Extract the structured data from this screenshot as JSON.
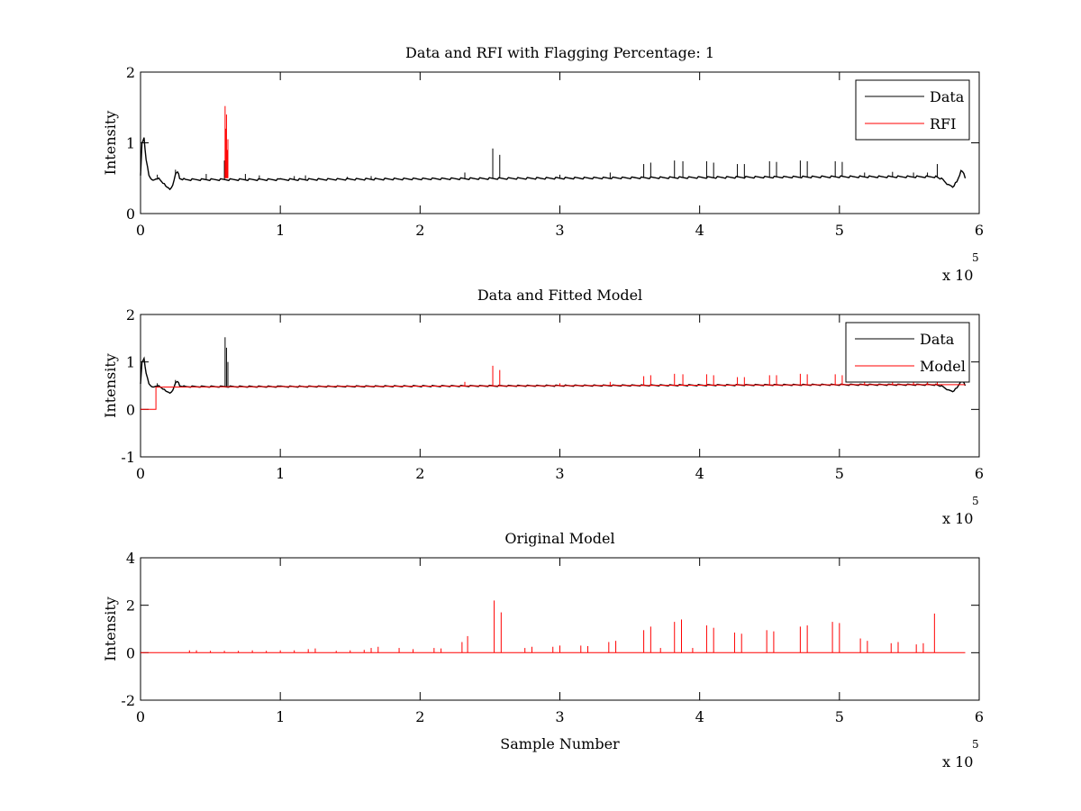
{
  "colors": {
    "data": "#000000",
    "rfi": "#ff0000",
    "model": "#ff0000",
    "axes": "#000000",
    "background": "#ffffff"
  },
  "x_multiplier": "x 10",
  "x_multiplier_exponent": "5",
  "chart_data": [
    {
      "type": "line",
      "title": "Data and RFI with Flagging Percentage: 1",
      "xlabel": "",
      "ylabel": "Intensity",
      "xlim": [
        0,
        600000
      ],
      "ylim": [
        0,
        2
      ],
      "xticks": [
        0,
        100000,
        200000,
        300000,
        400000,
        500000,
        600000
      ],
      "xtick_labels": [
        "0",
        "1",
        "2",
        "3",
        "4",
        "5",
        "6"
      ],
      "yticks": [
        0,
        1,
        2
      ],
      "ytick_labels": [
        "0",
        "1",
        "2"
      ],
      "grid": false,
      "legend": {
        "placement": "top-right",
        "entries": [
          "Data",
          "RFI"
        ]
      },
      "series": [
        {
          "name": "Data",
          "color": "#000000",
          "baseline": [
            [
              0,
              0.55
            ],
            [
              1000,
              1.0
            ],
            [
              2500,
              1.07
            ],
            [
              4000,
              0.75
            ],
            [
              6000,
              0.55
            ],
            [
              8000,
              0.48
            ],
            [
              10000,
              0.47
            ],
            [
              12000,
              0.5
            ],
            [
              14000,
              0.48
            ],
            [
              17000,
              0.42
            ],
            [
              19000,
              0.36
            ],
            [
              21000,
              0.35
            ],
            [
              23000,
              0.4
            ],
            [
              25000,
              0.55
            ],
            [
              26500,
              0.6
            ],
            [
              28000,
              0.5
            ],
            [
              32000,
              0.48
            ],
            [
              100000,
              0.48
            ],
            [
              200000,
              0.49
            ],
            [
              300000,
              0.5
            ],
            [
              400000,
              0.51
            ],
            [
              500000,
              0.52
            ],
            [
              570000,
              0.52
            ],
            [
              574000,
              0.48
            ],
            [
              578000,
              0.4
            ],
            [
              581000,
              0.38
            ],
            [
              584000,
              0.45
            ],
            [
              587000,
              0.6
            ],
            [
              589000,
              0.58
            ],
            [
              590000,
              0.5
            ]
          ],
          "spikes": [
            [
              12000,
              0.55
            ],
            [
              25000,
              0.62
            ],
            [
              47000,
              0.56
            ],
            [
              60000,
              0.75
            ],
            [
              75000,
              0.56
            ],
            [
              85000,
              0.54
            ],
            [
              110000,
              0.53
            ],
            [
              118000,
              0.54
            ],
            [
              148000,
              0.52
            ],
            [
              165000,
              0.53
            ],
            [
              232000,
              0.58
            ],
            [
              252000,
              0.92
            ],
            [
              257000,
              0.83
            ],
            [
              300000,
              0.55
            ],
            [
              336000,
              0.58
            ],
            [
              360000,
              0.7
            ],
            [
              365000,
              0.72
            ],
            [
              382000,
              0.75
            ],
            [
              388000,
              0.74
            ],
            [
              405000,
              0.74
            ],
            [
              410000,
              0.72
            ],
            [
              427000,
              0.7
            ],
            [
              432000,
              0.7
            ],
            [
              450000,
              0.74
            ],
            [
              455000,
              0.73
            ],
            [
              472000,
              0.75
            ],
            [
              477000,
              0.74
            ],
            [
              497000,
              0.74
            ],
            [
              502000,
              0.73
            ],
            [
              518000,
              0.58
            ],
            [
              538000,
              0.59
            ],
            [
              553000,
              0.58
            ],
            [
              563000,
              0.58
            ],
            [
              570000,
              0.7
            ]
          ]
        },
        {
          "name": "RFI",
          "color": "#ff0000",
          "baseline_value": 0.5,
          "spikes": [
            [
              60500,
              1.52
            ],
            [
              61000,
              1.2
            ],
            [
              61500,
              1.4
            ],
            [
              62000,
              0.9
            ],
            [
              62500,
              1.05
            ]
          ]
        }
      ]
    },
    {
      "type": "line",
      "title": "Data and Fitted Model",
      "xlabel": "",
      "ylabel": "Intensity",
      "xlim": [
        0,
        600000
      ],
      "ylim": [
        -1,
        2
      ],
      "xticks": [
        0,
        100000,
        200000,
        300000,
        400000,
        500000,
        600000
      ],
      "xtick_labels": [
        "0",
        "1",
        "2",
        "3",
        "4",
        "5",
        "6"
      ],
      "yticks": [
        -1,
        0,
        1,
        2
      ],
      "ytick_labels": [
        "-1",
        "0",
        "1",
        "2"
      ],
      "grid": false,
      "legend": {
        "placement": "top-right",
        "entries": [
          "Data",
          "Model"
        ]
      },
      "series": [
        {
          "name": "Data",
          "color": "#000000",
          "baseline": [
            [
              0,
              0.55
            ],
            [
              1000,
              1.0
            ],
            [
              2500,
              1.07
            ],
            [
              4000,
              0.75
            ],
            [
              6000,
              0.55
            ],
            [
              8000,
              0.48
            ],
            [
              10000,
              0.47
            ],
            [
              12000,
              0.5
            ],
            [
              14000,
              0.48
            ],
            [
              17000,
              0.42
            ],
            [
              19000,
              0.36
            ],
            [
              21000,
              0.35
            ],
            [
              23000,
              0.4
            ],
            [
              25000,
              0.55
            ],
            [
              26500,
              0.6
            ],
            [
              28000,
              0.5
            ],
            [
              32000,
              0.48
            ],
            [
              100000,
              0.48
            ],
            [
              200000,
              0.49
            ],
            [
              300000,
              0.5
            ],
            [
              400000,
              0.51
            ],
            [
              500000,
              0.52
            ],
            [
              570000,
              0.52
            ],
            [
              574000,
              0.48
            ],
            [
              578000,
              0.4
            ],
            [
              581000,
              0.38
            ],
            [
              584000,
              0.45
            ],
            [
              587000,
              0.6
            ],
            [
              589000,
              0.58
            ],
            [
              590000,
              0.5
            ]
          ],
          "spikes": [
            [
              60500,
              1.52
            ],
            [
              61500,
              1.3
            ],
            [
              62500,
              1.0
            ],
            [
              25000,
              0.62
            ],
            [
              12000,
              0.55
            ]
          ]
        },
        {
          "name": "Model",
          "color": "#ff0000",
          "baseline": [
            [
              0,
              0.0
            ],
            [
              11000,
              0.0
            ],
            [
              11000,
              0.47
            ],
            [
              100000,
              0.48
            ],
            [
              200000,
              0.49
            ],
            [
              300000,
              0.5
            ],
            [
              400000,
              0.51
            ],
            [
              500000,
              0.52
            ],
            [
              590000,
              0.52
            ]
          ],
          "spikes": [
            [
              232000,
              0.58
            ],
            [
              252000,
              0.92
            ],
            [
              257000,
              0.83
            ],
            [
              300000,
              0.55
            ],
            [
              336000,
              0.58
            ],
            [
              360000,
              0.7
            ],
            [
              365000,
              0.72
            ],
            [
              382000,
              0.75
            ],
            [
              388000,
              0.74
            ],
            [
              405000,
              0.74
            ],
            [
              410000,
              0.72
            ],
            [
              427000,
              0.68
            ],
            [
              432000,
              0.68
            ],
            [
              450000,
              0.72
            ],
            [
              455000,
              0.72
            ],
            [
              472000,
              0.75
            ],
            [
              477000,
              0.74
            ],
            [
              497000,
              0.74
            ],
            [
              502000,
              0.72
            ],
            [
              518000,
              0.58
            ],
            [
              538000,
              0.58
            ],
            [
              553000,
              0.57
            ],
            [
              563000,
              0.57
            ],
            [
              570000,
              0.62
            ]
          ]
        }
      ]
    },
    {
      "type": "line",
      "title": "Original Model",
      "xlabel": "Sample Number",
      "ylabel": "Intensity",
      "xlim": [
        0,
        600000
      ],
      "ylim": [
        -2,
        4
      ],
      "xticks": [
        0,
        100000,
        200000,
        300000,
        400000,
        500000,
        600000
      ],
      "xtick_labels": [
        "0",
        "1",
        "2",
        "3",
        "4",
        "5",
        "6"
      ],
      "yticks": [
        -2,
        0,
        2,
        4
      ],
      "ytick_labels": [
        "-2",
        "0",
        "2",
        "4"
      ],
      "grid": false,
      "series": [
        {
          "name": "",
          "color": "#ff0000",
          "baseline": [
            [
              0,
              0.0
            ],
            [
              590000,
              0.0
            ]
          ],
          "spikes": [
            [
              35000,
              0.1
            ],
            [
              40000,
              0.1
            ],
            [
              50000,
              0.08
            ],
            [
              60000,
              0.08
            ],
            [
              70000,
              0.08
            ],
            [
              80000,
              0.1
            ],
            [
              90000,
              0.08
            ],
            [
              100000,
              0.1
            ],
            [
              110000,
              0.1
            ],
            [
              120000,
              0.15
            ],
            [
              125000,
              0.18
            ],
            [
              140000,
              0.08
            ],
            [
              150000,
              0.1
            ],
            [
              160000,
              0.12
            ],
            [
              165000,
              0.2
            ],
            [
              170000,
              0.25
            ],
            [
              185000,
              0.2
            ],
            [
              195000,
              0.15
            ],
            [
              210000,
              0.2
            ],
            [
              215000,
              0.18
            ],
            [
              230000,
              0.45
            ],
            [
              234000,
              0.7
            ],
            [
              253000,
              2.2
            ],
            [
              258000,
              1.7
            ],
            [
              275000,
              0.2
            ],
            [
              280000,
              0.25
            ],
            [
              295000,
              0.25
            ],
            [
              300000,
              0.3
            ],
            [
              315000,
              0.3
            ],
            [
              320000,
              0.28
            ],
            [
              335000,
              0.45
            ],
            [
              340000,
              0.5
            ],
            [
              360000,
              0.95
            ],
            [
              365000,
              1.1
            ],
            [
              372000,
              0.2
            ],
            [
              382000,
              1.3
            ],
            [
              387000,
              1.4
            ],
            [
              395000,
              0.2
            ],
            [
              405000,
              1.15
            ],
            [
              410000,
              1.05
            ],
            [
              425000,
              0.85
            ],
            [
              430000,
              0.8
            ],
            [
              448000,
              0.95
            ],
            [
              453000,
              0.9
            ],
            [
              472000,
              1.1
            ],
            [
              477000,
              1.15
            ],
            [
              495000,
              1.3
            ],
            [
              500000,
              1.25
            ],
            [
              515000,
              0.6
            ],
            [
              520000,
              0.5
            ],
            [
              537000,
              0.4
            ],
            [
              542000,
              0.45
            ],
            [
              555000,
              0.35
            ],
            [
              560000,
              0.4
            ],
            [
              568000,
              1.65
            ]
          ]
        }
      ]
    }
  ]
}
